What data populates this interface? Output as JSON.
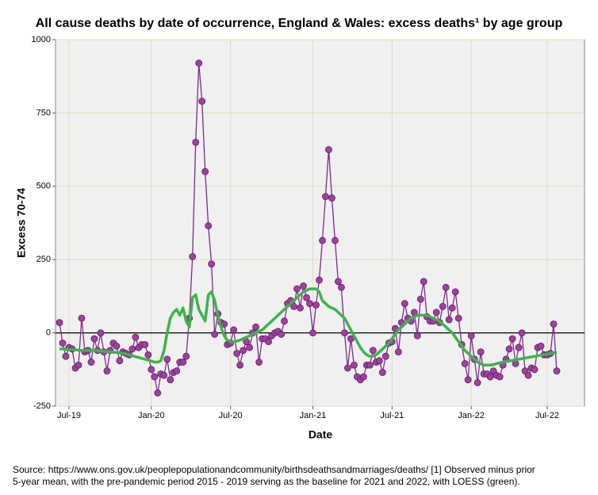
{
  "chart_data": {
    "type": "line",
    "title": "All cause deaths by date of occurrence, England & Wales: excess deaths¹ by age group",
    "x_label": "Date",
    "y_label": "Excess 70-74",
    "notes": [
      "Source: https://www.ons.gov.uk/peoplepopulationandcommunity/birthsdeathsandmarriages/deaths/  [1] Observed minus prior",
      "5-year mean, with the pre-pandemic period 2015 - 2019 serving as the baseline for 2021 and 2022, with LOESS (green)."
    ],
    "categories": [
      null,
      null,
      null,
      "Jul-19",
      null,
      null,
      null,
      null,
      null,
      null,
      null,
      null,
      null,
      null,
      null,
      null,
      null,
      null,
      null,
      null,
      null,
      null,
      null,
      null,
      null,
      null,
      null,
      null,
      null,
      "Jan-20",
      null,
      null,
      null,
      null,
      null,
      null,
      null,
      null,
      null,
      null,
      null,
      null,
      null,
      null,
      null,
      null,
      null,
      null,
      null,
      null,
      null,
      null,
      null,
      null,
      "Jul-20",
      null,
      null,
      null,
      null,
      null,
      null,
      null,
      null,
      null,
      null,
      null,
      null,
      null,
      null,
      null,
      null,
      null,
      null,
      null,
      null,
      null,
      null,
      null,
      null,
      null,
      "Jan-21",
      null,
      null,
      null,
      null,
      null,
      null,
      null,
      null,
      null,
      null,
      null,
      null,
      null,
      null,
      null,
      null,
      null,
      null,
      null,
      null,
      null,
      null,
      null,
      null,
      "Jul-21",
      null,
      null,
      null,
      null,
      null,
      null,
      null,
      null,
      null,
      null,
      null,
      null,
      null,
      null,
      null,
      null,
      null,
      null,
      null,
      null,
      null,
      null,
      null,
      null,
      "Jan-22",
      null,
      null,
      null,
      null,
      null,
      null,
      null,
      null,
      null,
      null,
      null,
      null,
      null,
      null,
      null,
      null,
      null,
      null,
      null,
      null,
      null,
      null,
      null,
      "Jul-22",
      null,
      null,
      null
    ],
    "series": [
      {
        "color": "#7b2a8a",
        "marker": true,
        "values": [
          35,
          -35,
          -80,
          -50,
          -55,
          -120,
          -110,
          50,
          -65,
          -60,
          -100,
          -20,
          -60,
          0,
          -65,
          -130,
          -60,
          -35,
          -45,
          -95,
          -65,
          -70,
          -75,
          -55,
          -15,
          -50,
          -40,
          -40,
          -75,
          -125,
          -150,
          -205,
          -140,
          -145,
          -90,
          -160,
          -135,
          -130,
          -100,
          -100,
          -80,
          50,
          260,
          650,
          920,
          790,
          550,
          365,
          235,
          -5,
          65,
          35,
          30,
          -40,
          -35,
          10,
          -70,
          -110,
          -60,
          -30,
          -50,
          0,
          20,
          -100,
          -20,
          -20,
          -30,
          -10,
          0,
          5,
          -5,
          40,
          100,
          110,
          90,
          150,
          85,
          160,
          120,
          100,
          0,
          95,
          180,
          315,
          465,
          625,
          460,
          315,
          175,
          155,
          0,
          -120,
          -20,
          -110,
          -150,
          -160,
          -150,
          -110,
          -110,
          -60,
          -100,
          -95,
          -135,
          -80,
          -35,
          -30,
          15,
          -65,
          35,
          100,
          50,
          40,
          70,
          -10,
          115,
          175,
          55,
          40,
          40,
          70,
          35,
          90,
          155,
          45,
          85,
          140,
          50,
          -40,
          -105,
          -160,
          -10,
          -90,
          -170,
          -65,
          -140,
          -140,
          -150,
          -130,
          -145,
          -150,
          -110,
          -90,
          -55,
          -20,
          -105,
          -50,
          0,
          -130,
          -145,
          -120,
          -125,
          -50,
          -45,
          -75,
          -75,
          -70,
          30,
          -130
        ]
      },
      {
        "color": "#3cb44b",
        "marker": false,
        "values": [
          -55,
          -55,
          -56,
          -57,
          -58,
          -58,
          -59,
          -60,
          -60,
          -60,
          -60,
          -60,
          -61,
          -62,
          -63,
          -64,
          -65,
          -66,
          -67,
          -68,
          -70,
          -72,
          -75,
          -78,
          -81,
          -84,
          -87,
          -90,
          -93,
          -96,
          -100,
          -100,
          -95,
          -60,
          0,
          50,
          70,
          80,
          60,
          85,
          40,
          20,
          120,
          130,
          80,
          60,
          40,
          130,
          140,
          110,
          60,
          20,
          -10,
          -25,
          -30,
          -30,
          -28,
          -25,
          -20,
          -15,
          -10,
          -5,
          0,
          5,
          10,
          20,
          30,
          40,
          50,
          60,
          70,
          80,
          90,
          100,
          110,
          120,
          130,
          140,
          145,
          150,
          150,
          150,
          140,
          110,
          100,
          90,
          85,
          80,
          70,
          60,
          50,
          30,
          10,
          -10,
          -30,
          -50,
          -65,
          -75,
          -80,
          -80,
          -75,
          -65,
          -55,
          -45,
          -35,
          -20,
          -5,
          10,
          20,
          30,
          40,
          50,
          55,
          60,
          60,
          60,
          60,
          55,
          50,
          45,
          40,
          30,
          20,
          10,
          0,
          -15,
          -30,
          -45,
          -60,
          -70,
          -80,
          -90,
          -100,
          -105,
          -110,
          -110,
          -110,
          -108,
          -105,
          -102,
          -100,
          -98,
          -96,
          -94,
          -92,
          -90,
          -88,
          -86,
          -84,
          -82,
          -80,
          -78,
          -76,
          -74,
          -72,
          -70,
          -68,
          -67
        ]
      }
    ],
    "ylim": [
      -250,
      1000
    ],
    "yticks": [
      -250,
      0,
      250,
      500,
      750,
      1000
    ],
    "reference_line": 0,
    "grid": true
  }
}
